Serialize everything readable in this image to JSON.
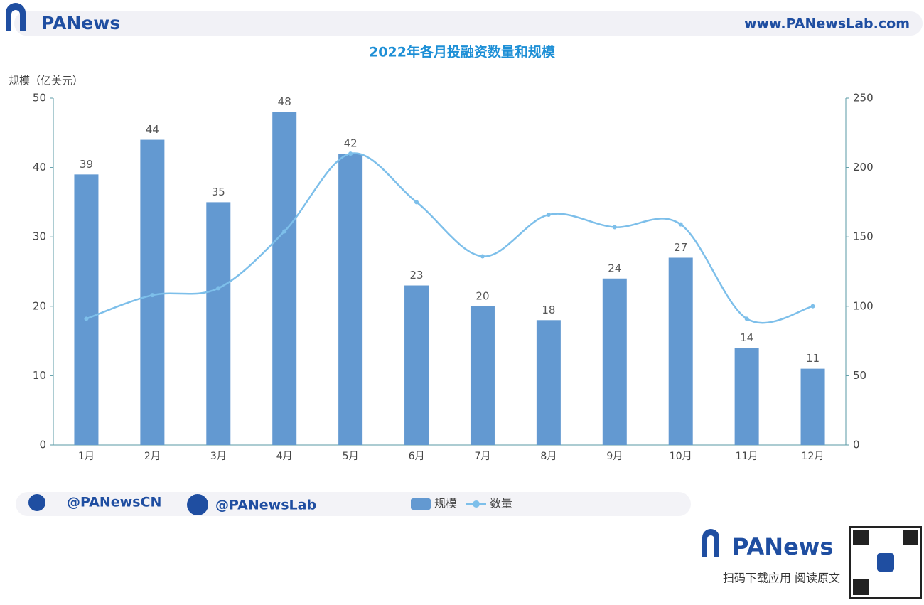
{
  "brand": {
    "logo": "PANews",
    "site": "www.PANewsLab.com",
    "twitter": "@PANewsCN",
    "facebook": "@PANewsLab",
    "footer_logo": "PANews",
    "footer_caption": "扫码下载应用  阅读原文"
  },
  "chart_data": {
    "type": "bar_line",
    "title": "2022年各月投融资数量和规模",
    "y_label": "规模（亿美元）",
    "categories": [
      "1月",
      "2月",
      "3月",
      "4月",
      "5月",
      "6月",
      "7月",
      "8月",
      "9月",
      "10月",
      "11月",
      "12月"
    ],
    "series": [
      {
        "name": "规模",
        "type": "bar",
        "color": "#6399d1",
        "values": [
          39,
          44,
          35,
          48,
          42,
          23,
          20,
          18,
          24,
          27,
          14,
          11
        ]
      },
      {
        "name": "数量",
        "type": "line",
        "axis": "y2",
        "color": "#7dbfea",
        "values": [
          91,
          108,
          113,
          154,
          210,
          175,
          136,
          166,
          157,
          159,
          91,
          100
        ]
      }
    ],
    "ylim": [
      0,
      50
    ],
    "yticks": [
      0,
      10,
      20,
      30,
      40,
      50
    ],
    "y2lim": [
      0,
      250
    ],
    "y2ticks": [
      0,
      50,
      100,
      150,
      200,
      250
    ]
  }
}
